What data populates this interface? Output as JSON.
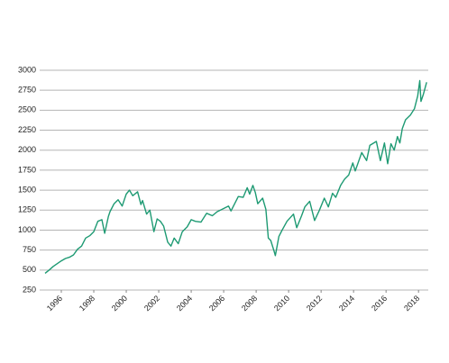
{
  "chart_data": {
    "type": "line",
    "x": [
      1995.0,
      1995.25,
      1995.5,
      1995.75,
      1996.0,
      1996.25,
      1996.5,
      1996.75,
      1997.0,
      1997.25,
      1997.5,
      1997.75,
      1998.0,
      1998.25,
      1998.5,
      1998.67,
      1998.9,
      1999.0,
      1999.25,
      1999.5,
      1999.75,
      2000.0,
      2000.2,
      2000.4,
      2000.7,
      2000.9,
      2001.0,
      2001.25,
      2001.45,
      2001.7,
      2001.9,
      2002.1,
      2002.3,
      2002.55,
      2002.75,
      2002.95,
      2003.2,
      2003.45,
      2003.75,
      2004.0,
      2004.25,
      2004.6,
      2004.95,
      2005.3,
      2005.6,
      2005.9,
      2006.3,
      2006.45,
      2006.9,
      2007.2,
      2007.45,
      2007.6,
      2007.8,
      2007.95,
      2008.1,
      2008.4,
      2008.6,
      2008.75,
      2008.9,
      2009.1,
      2009.18,
      2009.4,
      2009.6,
      2009.9,
      2010.3,
      2010.5,
      2010.8,
      2011.0,
      2011.3,
      2011.6,
      2011.9,
      2012.2,
      2012.45,
      2012.7,
      2012.9,
      2013.2,
      2013.45,
      2013.7,
      2013.95,
      2014.1,
      2014.5,
      2014.8,
      2015.0,
      2015.4,
      2015.65,
      2015.9,
      2016.1,
      2016.3,
      2016.5,
      2016.7,
      2016.85,
      2017.0,
      2017.2,
      2017.5,
      2017.75,
      2017.95,
      2018.08,
      2018.15,
      2018.3,
      2018.5
    ],
    "series": [
      {
        "color": "#1e9a73",
        "values": [
          460,
          500,
          545,
          580,
          615,
          645,
          660,
          690,
          760,
          800,
          900,
          930,
          980,
          1110,
          1130,
          960,
          1170,
          1230,
          1330,
          1380,
          1300,
          1450,
          1500,
          1430,
          1480,
          1320,
          1370,
          1200,
          1250,
          980,
          1140,
          1110,
          1050,
          850,
          800,
          900,
          830,
          980,
          1040,
          1130,
          1110,
          1100,
          1210,
          1180,
          1230,
          1260,
          1300,
          1240,
          1420,
          1410,
          1530,
          1450,
          1560,
          1470,
          1330,
          1400,
          1260,
          900,
          870,
          740,
          680,
          920,
          1000,
          1110,
          1200,
          1030,
          1180,
          1290,
          1360,
          1120,
          1250,
          1400,
          1290,
          1460,
          1410,
          1560,
          1640,
          1690,
          1840,
          1740,
          1970,
          1870,
          2060,
          2110,
          1870,
          2090,
          1830,
          2080,
          2000,
          2170,
          2090,
          2270,
          2380,
          2440,
          2520,
          2680,
          2870,
          2610,
          2700,
          2850
        ]
      }
    ],
    "xlim": [
      1995,
      2018.6
    ],
    "xticks": [
      1996,
      1998,
      2000,
      2002,
      2004,
      2006,
      2008,
      2010,
      2012,
      2014,
      2016,
      2018
    ],
    "ylim": [
      250,
      3000
    ],
    "yticks": [
      250,
      500,
      750,
      1000,
      1250,
      1500,
      1750,
      2000,
      2250,
      2500,
      2750,
      3000
    ],
    "grid": true
  }
}
